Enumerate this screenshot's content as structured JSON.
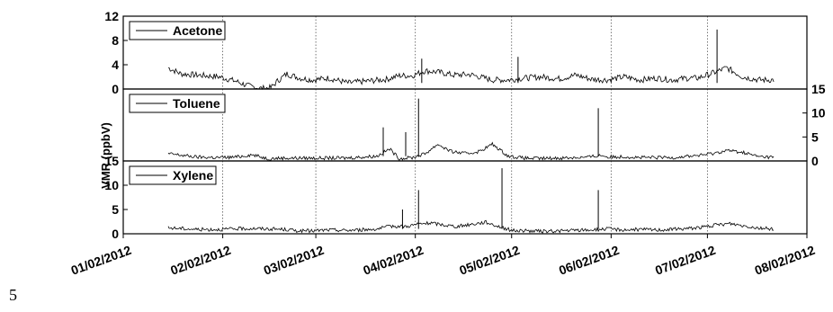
{
  "page_number": "5",
  "colors": {
    "axis": "#000000",
    "series": "#000000",
    "gridline": "#555555",
    "background": "#ffffff"
  },
  "chart_data": {
    "type": "line",
    "shared_x": {
      "type": "date",
      "range": [
        "01/02/2012",
        "08/02/2012"
      ],
      "tick_labels": [
        "01/02/2012",
        "02/02/2012",
        "03/02/2012",
        "04/02/2012",
        "05/02/2012",
        "06/02/2012",
        "07/02/2012",
        "08/02/2012"
      ],
      "tick_rotation_deg": -20,
      "vertical_gridlines": "dashed, at 02/02/2012 through 07/02/2012"
    },
    "ylabel": "VMR (ppbV)",
    "panels": [
      {
        "legend": "Acetone",
        "legend_position": "top-left",
        "y_axis_side": "left",
        "ylim": [
          0,
          12
        ],
        "yticks": [
          "0",
          "4",
          "8",
          "12"
        ],
        "series": [
          {
            "name": "Acetone",
            "x": [
              "01/16/2012",
              "01/20/2012",
              "01/25/2012",
              "02/01/2012",
              "02/06/2012",
              "02/10/2012",
              "02/14/2012",
              "02/17/2012",
              "02/19/2012",
              "02/22/2012",
              "02/26/2012",
              "03/01/2012",
              "03/06/2012",
              "03/12/2012",
              "03/18/2012",
              "03/24/2012",
              "03/28/2012",
              "04/01/2012",
              "04/05/2012",
              "04/09/2012",
              "04/14/2012",
              "04/19/2012",
              "04/22/2012",
              "04/26/2012",
              "05/01/2012",
              "05/06/2012",
              "05/11/2012",
              "05/17/2012",
              "05/22/2012",
              "05/27/2012",
              "06/01/2012",
              "06/06/2012",
              "06/11/2012",
              "06/16/2012",
              "06/21/2012",
              "06/26/2012",
              "06/29/2012",
              "07/03/2012",
              "07/08/2012",
              "07/13/2012",
              "07/18/2012",
              "07/23/2012"
            ],
            "y": [
              3.5,
              2.5,
              2.3,
              2.0,
              1.3,
              0.5,
              0.1,
              0.2,
              1.3,
              2.5,
              1.8,
              1.5,
              1.8,
              1.0,
              1.3,
              1.6,
              2.2,
              2.2,
              3.0,
              2.8,
              2.3,
              2.4,
              2.0,
              1.5,
              1.5,
              1.8,
              2.0,
              1.7,
              2.3,
              1.6,
              1.5,
              2.0,
              1.5,
              1.8,
              1.5,
              1.8,
              1.8,
              2.5,
              3.5,
              2.0,
              1.5,
              1.5
            ]
          }
        ],
        "peaks": [
          {
            "x": "07/05/2012",
            "y": 9.8
          },
          {
            "x": "04/04/2012",
            "y": 5.0
          },
          {
            "x": "05/04/2012",
            "y": 5.3
          }
        ]
      },
      {
        "legend": "Toluene",
        "legend_position": "top-left",
        "y_axis_side": "right",
        "ylim": [
          0,
          15
        ],
        "yticks": [
          "0",
          "5",
          "10",
          "15"
        ],
        "series": [
          {
            "name": "Toluene",
            "x": [
              "01/16/2012",
              "01/20/2012",
              "01/25/2012",
              "02/01/2012",
              "02/06/2012",
              "02/11/2012",
              "02/16/2012",
              "02/21/2012",
              "02/26/2012",
              "03/01/2012",
              "03/06/2012",
              "03/11/2012",
              "03/16/2012",
              "03/21/2012",
              "03/25/2012",
              "03/28/2012",
              "04/01/2012",
              "04/05/2012",
              "04/09/2012",
              "04/13/2012",
              "04/18/2012",
              "04/22/2012",
              "04/26/2012",
              "05/01/2012",
              "05/06/2012",
              "05/11/2012",
              "05/16/2012",
              "05/21/2012",
              "05/26/2012",
              "05/30/2012",
              "06/01/2012",
              "06/06/2012",
              "06/11/2012",
              "06/16/2012",
              "06/21/2012",
              "06/26/2012",
              "06/30/2012",
              "07/04/2012",
              "07/08/2012",
              "07/13/2012",
              "07/18/2012",
              "07/23/2012"
            ],
            "y": [
              1.5,
              1.2,
              0.8,
              0.7,
              0.8,
              1.3,
              0.5,
              0.6,
              0.6,
              0.6,
              0.6,
              0.6,
              0.8,
              1.0,
              2.5,
              0.5,
              0.7,
              1.5,
              3.5,
              2.0,
              1.5,
              2.0,
              3.5,
              1.0,
              0.6,
              0.5,
              0.6,
              0.7,
              0.8,
              1.2,
              0.8,
              0.9,
              0.7,
              0.7,
              0.7,
              1.0,
              1.2,
              1.6,
              2.2,
              1.8,
              0.9,
              0.8
            ]
          }
        ],
        "peaks": [
          {
            "x": "04/03/2012",
            "y": 13.0
          },
          {
            "x": "05/29/2012",
            "y": 11.0
          },
          {
            "x": "03/30/2012",
            "y": 6.0
          },
          {
            "x": "03/23/2012",
            "y": 7.0
          }
        ]
      },
      {
        "legend": "Xylene",
        "legend_position": "top-left",
        "y_axis_side": "left",
        "ylim": [
          0,
          15
        ],
        "yticks": [
          "0",
          "5",
          "10",
          "15"
        ],
        "series": [
          {
            "name": "Xylene",
            "x": [
              "01/16/2012",
              "01/20/2012",
              "01/25/2012",
              "02/01/2012",
              "02/06/2012",
              "02/11/2012",
              "02/16/2012",
              "02/21/2012",
              "02/26/2012",
              "03/01/2012",
              "03/06/2012",
              "03/11/2012",
              "03/16/2012",
              "03/21/2012",
              "03/26/2012",
              "03/30/2012",
              "04/03/2012",
              "04/07/2012",
              "04/11/2012",
              "04/15/2012",
              "04/20/2012",
              "04/24/2012",
              "04/28/2012",
              "05/02/2012",
              "05/07/2012",
              "05/12/2012",
              "05/17/2012",
              "05/22/2012",
              "05/27/2012",
              "06/01/2012",
              "06/06/2012",
              "06/11/2012",
              "06/16/2012",
              "06/21/2012",
              "06/26/2012",
              "07/01/2012",
              "07/05/2012",
              "07/09/2012",
              "07/13/2012",
              "07/18/2012",
              "07/23/2012"
            ],
            "y": [
              1.2,
              1.1,
              0.9,
              0.9,
              1.0,
              1.1,
              1.0,
              0.9,
              0.6,
              0.6,
              0.8,
              0.7,
              0.8,
              1.0,
              1.6,
              1.5,
              2.0,
              2.2,
              1.8,
              1.5,
              2.0,
              2.4,
              1.5,
              0.7,
              0.6,
              0.5,
              0.6,
              0.7,
              0.8,
              1.0,
              0.8,
              0.9,
              0.8,
              0.9,
              1.1,
              1.4,
              1.8,
              2.1,
              1.7,
              1.2,
              1.0
            ]
          }
        ],
        "peaks": [
          {
            "x": "04/29/2012",
            "y": 13.5
          },
          {
            "x": "05/29/2012",
            "y": 9.0
          },
          {
            "x": "04/03/2012",
            "y": 9.0
          },
          {
            "x": "03/29/2012",
            "y": 5.0
          }
        ]
      }
    ]
  }
}
